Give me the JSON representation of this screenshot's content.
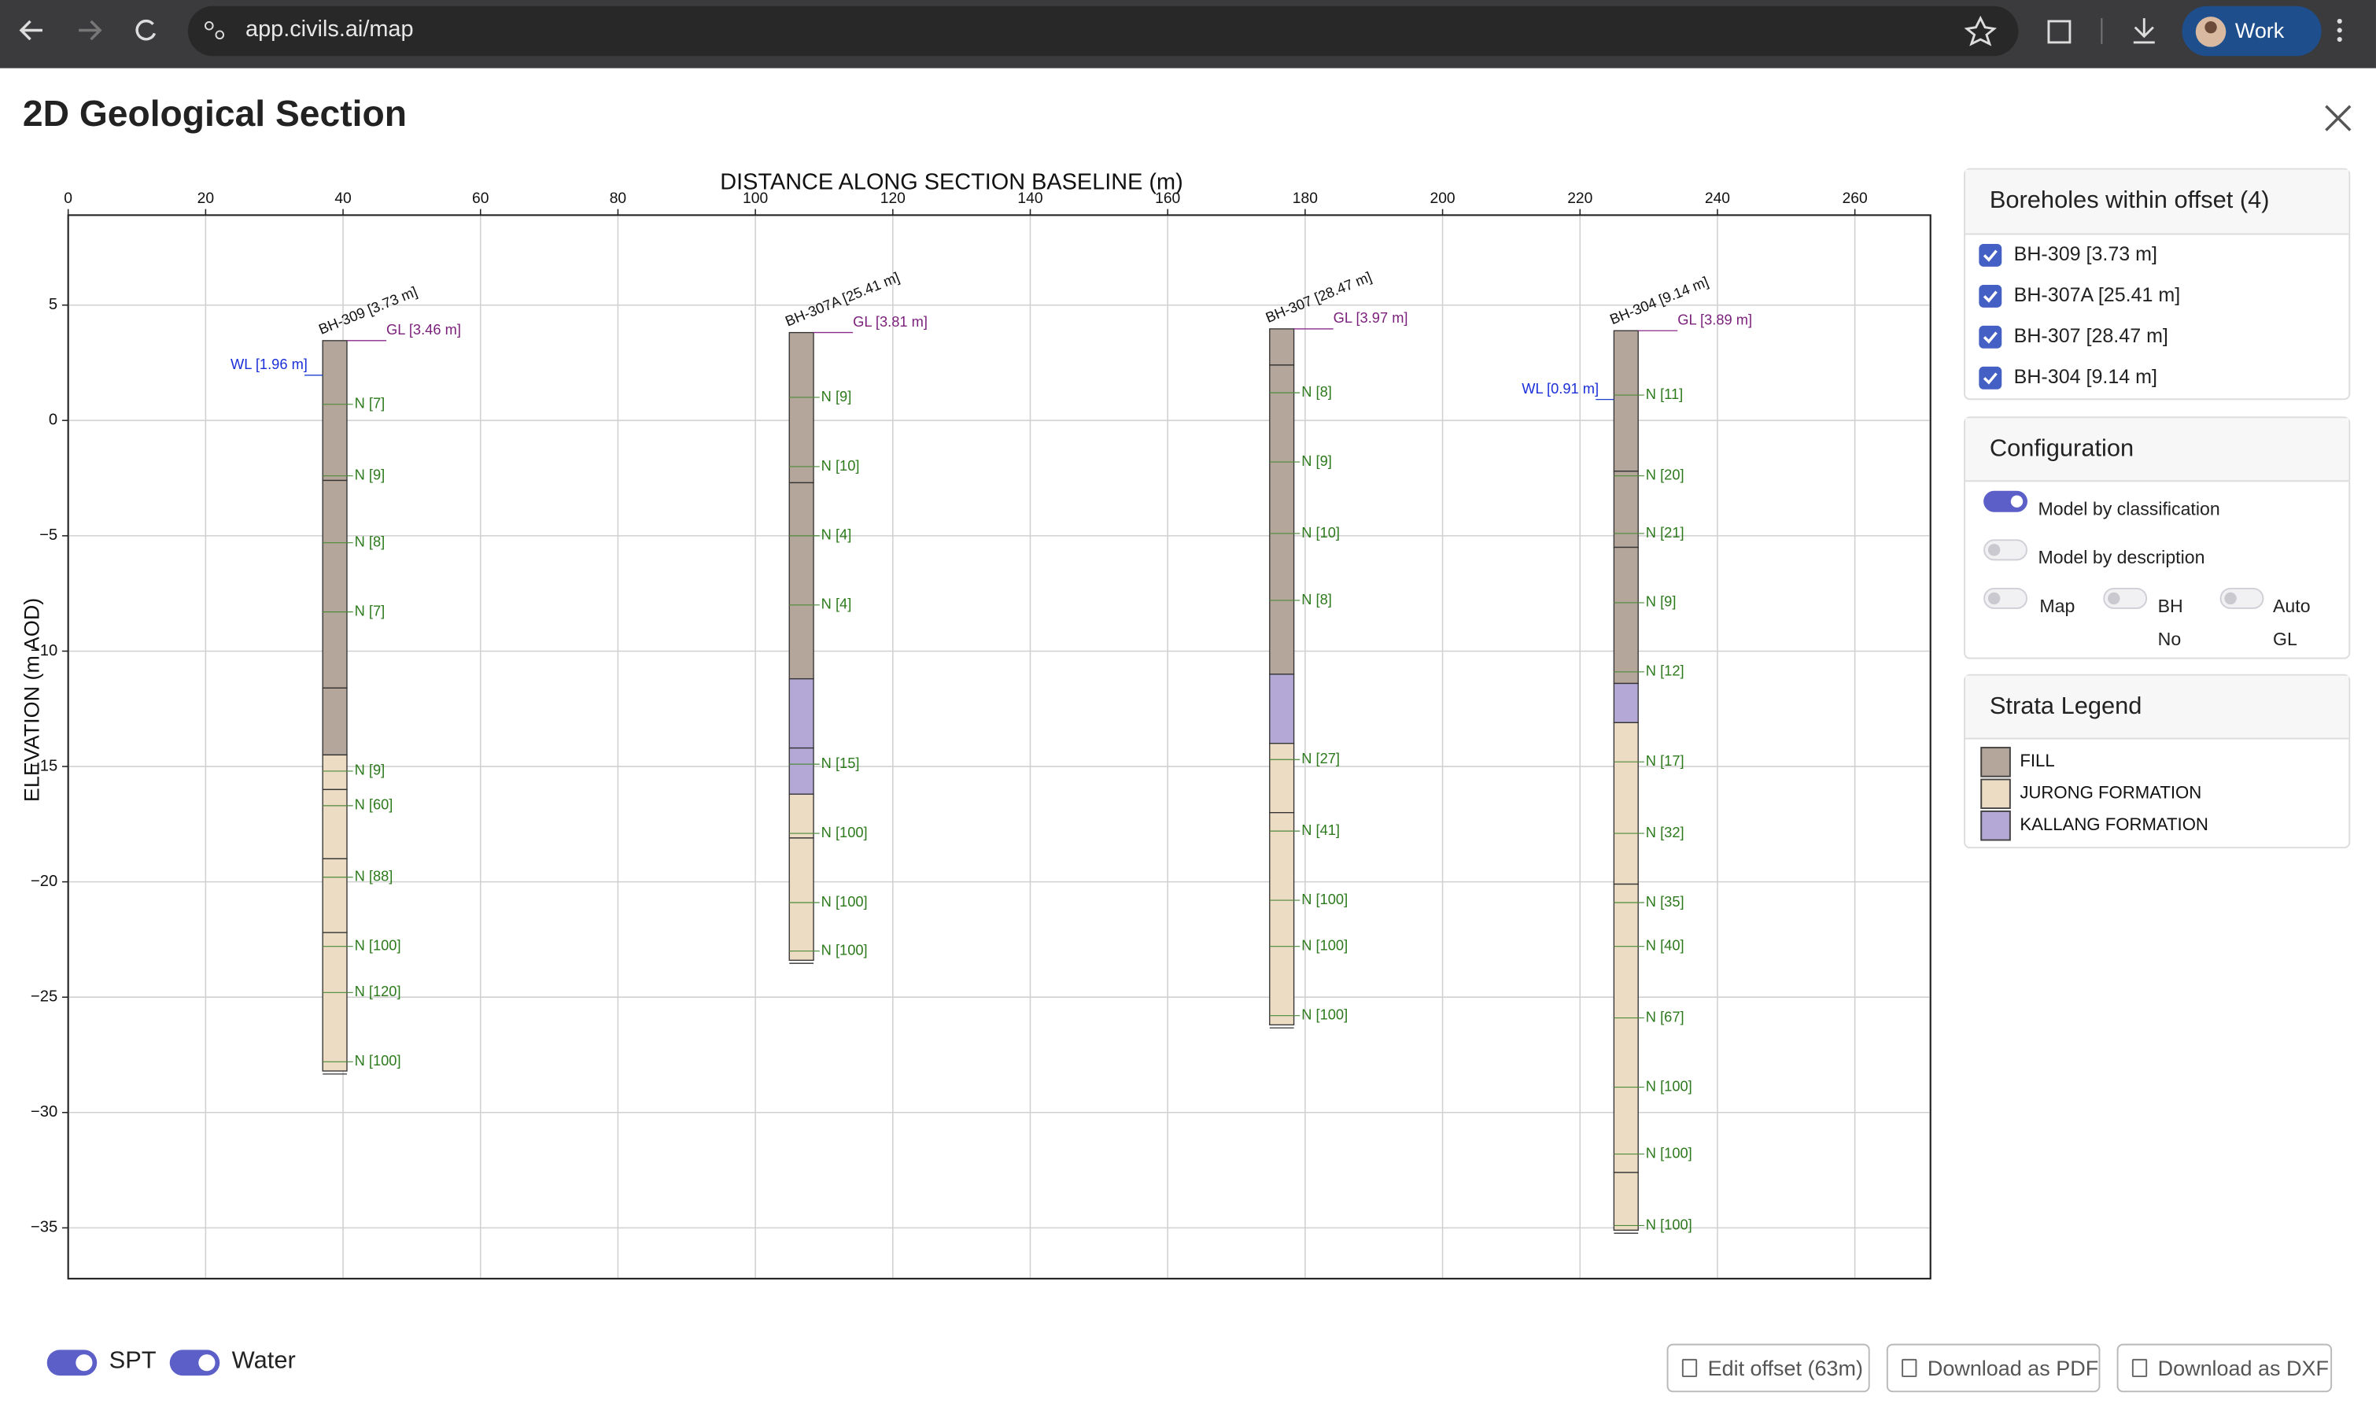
{
  "browser": {
    "url": "app.civils.ai/map",
    "profile": "Work"
  },
  "header": {
    "title": "2D Geological Section"
  },
  "chart_data": {
    "type": "borehole-section",
    "xlabel": "DISTANCE ALONG SECTION BASELINE (m)",
    "ylabel": "ELEVATION (m AOD)",
    "xlim": [
      0,
      271
    ],
    "ylim": [
      -37.2,
      8.9
    ],
    "xticks": [
      0,
      20,
      40,
      60,
      80,
      100,
      120,
      140,
      160,
      180,
      200,
      220,
      240,
      260
    ],
    "yticks": [
      5,
      0,
      {
        "value": -5,
        "label": "−5"
      },
      {
        "value": -10,
        "label": "−10"
      },
      {
        "value": -15,
        "label": "−15"
      },
      {
        "value": -20,
        "label": "−20"
      },
      {
        "value": -25,
        "label": "−25"
      },
      {
        "value": -30,
        "label": "−30"
      },
      {
        "value": -35,
        "label": "−35"
      }
    ],
    "grid": true,
    "strata": [
      {
        "name": "FILL",
        "color": "#b5a69b"
      },
      {
        "name": "JURONG FORMATION",
        "color": "#eddcc4"
      },
      {
        "name": "KALLANG FORMATION",
        "color": "#b3a8d6"
      }
    ],
    "boreholes": [
      {
        "label": "BH-309 [3.73 m]",
        "selected": true,
        "x": 38.8,
        "gl": 3.46,
        "gl_label": "GL [3.46 m]",
        "wl": 1.96,
        "wl_label": "WL [1.96 m]",
        "layers": [
          {
            "stratum": 0,
            "top": 3.46,
            "bottom": -2.6
          },
          {
            "stratum": 0,
            "top": -2.6,
            "bottom": -11.6
          },
          {
            "stratum": 0,
            "top": -11.6,
            "bottom": -14.5
          },
          {
            "stratum": 1,
            "top": -14.5,
            "bottom": -16.0
          },
          {
            "stratum": 1,
            "top": -16.0,
            "bottom": -19.0
          },
          {
            "stratum": 1,
            "top": -19.0,
            "bottom": -22.2
          },
          {
            "stratum": 1,
            "top": -22.2,
            "bottom": -28.2
          }
        ],
        "spt_elev": [
          0.7,
          -2.4,
          -5.3,
          -8.3,
          -15.2,
          -16.7,
          -19.8,
          -22.8,
          -24.8,
          -27.8
        ],
        "spt_labels": [
          "N [7]",
          "N [9]",
          "N [8]",
          "N [7]",
          "N [9]",
          "N [60]",
          "N [88]",
          "N [100]",
          "N [120]",
          "N [100]"
        ]
      },
      {
        "label": "BH-307A [25.41 m]",
        "selected": true,
        "x": 106.7,
        "gl": 3.81,
        "gl_label": "GL [3.81 m]",
        "layers": [
          {
            "stratum": 0,
            "top": 3.81,
            "bottom": -2.7
          },
          {
            "stratum": 0,
            "top": -2.7,
            "bottom": -11.2
          },
          {
            "stratum": 2,
            "top": -11.2,
            "bottom": -14.2
          },
          {
            "stratum": 2,
            "top": -14.2,
            "bottom": -16.2
          },
          {
            "stratum": 1,
            "top": -16.2,
            "bottom": -18.1
          },
          {
            "stratum": 1,
            "top": -18.1,
            "bottom": -23.4
          }
        ],
        "spt_elev": [
          1.0,
          -2.0,
          -5.0,
          -8.0,
          -14.9,
          -17.9,
          -20.9,
          -23.0
        ],
        "spt_labels": [
          "N [9]",
          "N [10]",
          "N [4]",
          "N [4]",
          "N [15]",
          "N [100]",
          "N [100]",
          "N [100]"
        ]
      },
      {
        "label": "BH-307 [28.47 m]",
        "selected": true,
        "x": 176.6,
        "gl": 3.97,
        "gl_label": "GL [3.97 m]",
        "layers": [
          {
            "stratum": 0,
            "top": 3.97,
            "bottom": 2.4
          },
          {
            "stratum": 0,
            "top": 2.4,
            "bottom": -11.0
          },
          {
            "stratum": 2,
            "top": -11.0,
            "bottom": -14.0
          },
          {
            "stratum": 1,
            "top": -14.0,
            "bottom": -17.0
          },
          {
            "stratum": 1,
            "top": -17.0,
            "bottom": -26.2
          }
        ],
        "spt_elev": [
          1.2,
          -1.8,
          -4.9,
          -7.8,
          -14.7,
          -17.8,
          -20.8,
          -22.8,
          -25.8
        ],
        "spt_labels": [
          "N [8]",
          "N [9]",
          "N [10]",
          "N [8]",
          "N [27]",
          "N [41]",
          "N [100]",
          "N [100]",
          "N [100]"
        ]
      },
      {
        "label": "BH-304 [9.14 m]",
        "selected": true,
        "x": 226.7,
        "gl": 3.89,
        "gl_label": "GL [3.89 m]",
        "wl": 0.91,
        "wl_label": "WL [0.91 m]",
        "layers": [
          {
            "stratum": 0,
            "top": 3.89,
            "bottom": -2.2
          },
          {
            "stratum": 0,
            "top": -2.2,
            "bottom": -5.5
          },
          {
            "stratum": 0,
            "top": -5.5,
            "bottom": -11.4
          },
          {
            "stratum": 2,
            "top": -11.4,
            "bottom": -13.1
          },
          {
            "stratum": 1,
            "top": -13.1,
            "bottom": -20.1
          },
          {
            "stratum": 1,
            "top": -20.1,
            "bottom": -32.6
          },
          {
            "stratum": 1,
            "top": -32.6,
            "bottom": -35.1
          }
        ],
        "spt_elev": [
          1.1,
          -2.4,
          -4.9,
          -7.9,
          -10.9,
          -14.8,
          -17.9,
          -20.9,
          -22.8,
          -25.9,
          -28.9,
          -31.8,
          -34.9
        ],
        "spt_labels": [
          "N [11]",
          "N [20]",
          "N [21]",
          "N [9]",
          "N [12]",
          "N [17]",
          "N [32]",
          "N [35]",
          "N [40]",
          "N [67]",
          "N [100]",
          "N [100]",
          "N [100]"
        ]
      }
    ]
  },
  "sidebar": {
    "boreholes_title": "Boreholes within offset (4)",
    "config_title": "Configuration",
    "toggles": [
      {
        "label": "Model by classification",
        "on": true
      },
      {
        "label": "Model by description",
        "on": false
      },
      {
        "label": "Map",
        "on": false
      },
      {
        "label": "BH No",
        "on": false
      },
      {
        "label": "Auto GL",
        "on": false
      }
    ],
    "legend_title": "Strata Legend"
  },
  "footer": {
    "toggles": [
      {
        "label": "SPT",
        "on": true
      },
      {
        "label": "Water",
        "on": true
      }
    ],
    "buttons": [
      "Edit offset (63m)",
      "Download as PDF",
      "Download as DXF"
    ]
  }
}
